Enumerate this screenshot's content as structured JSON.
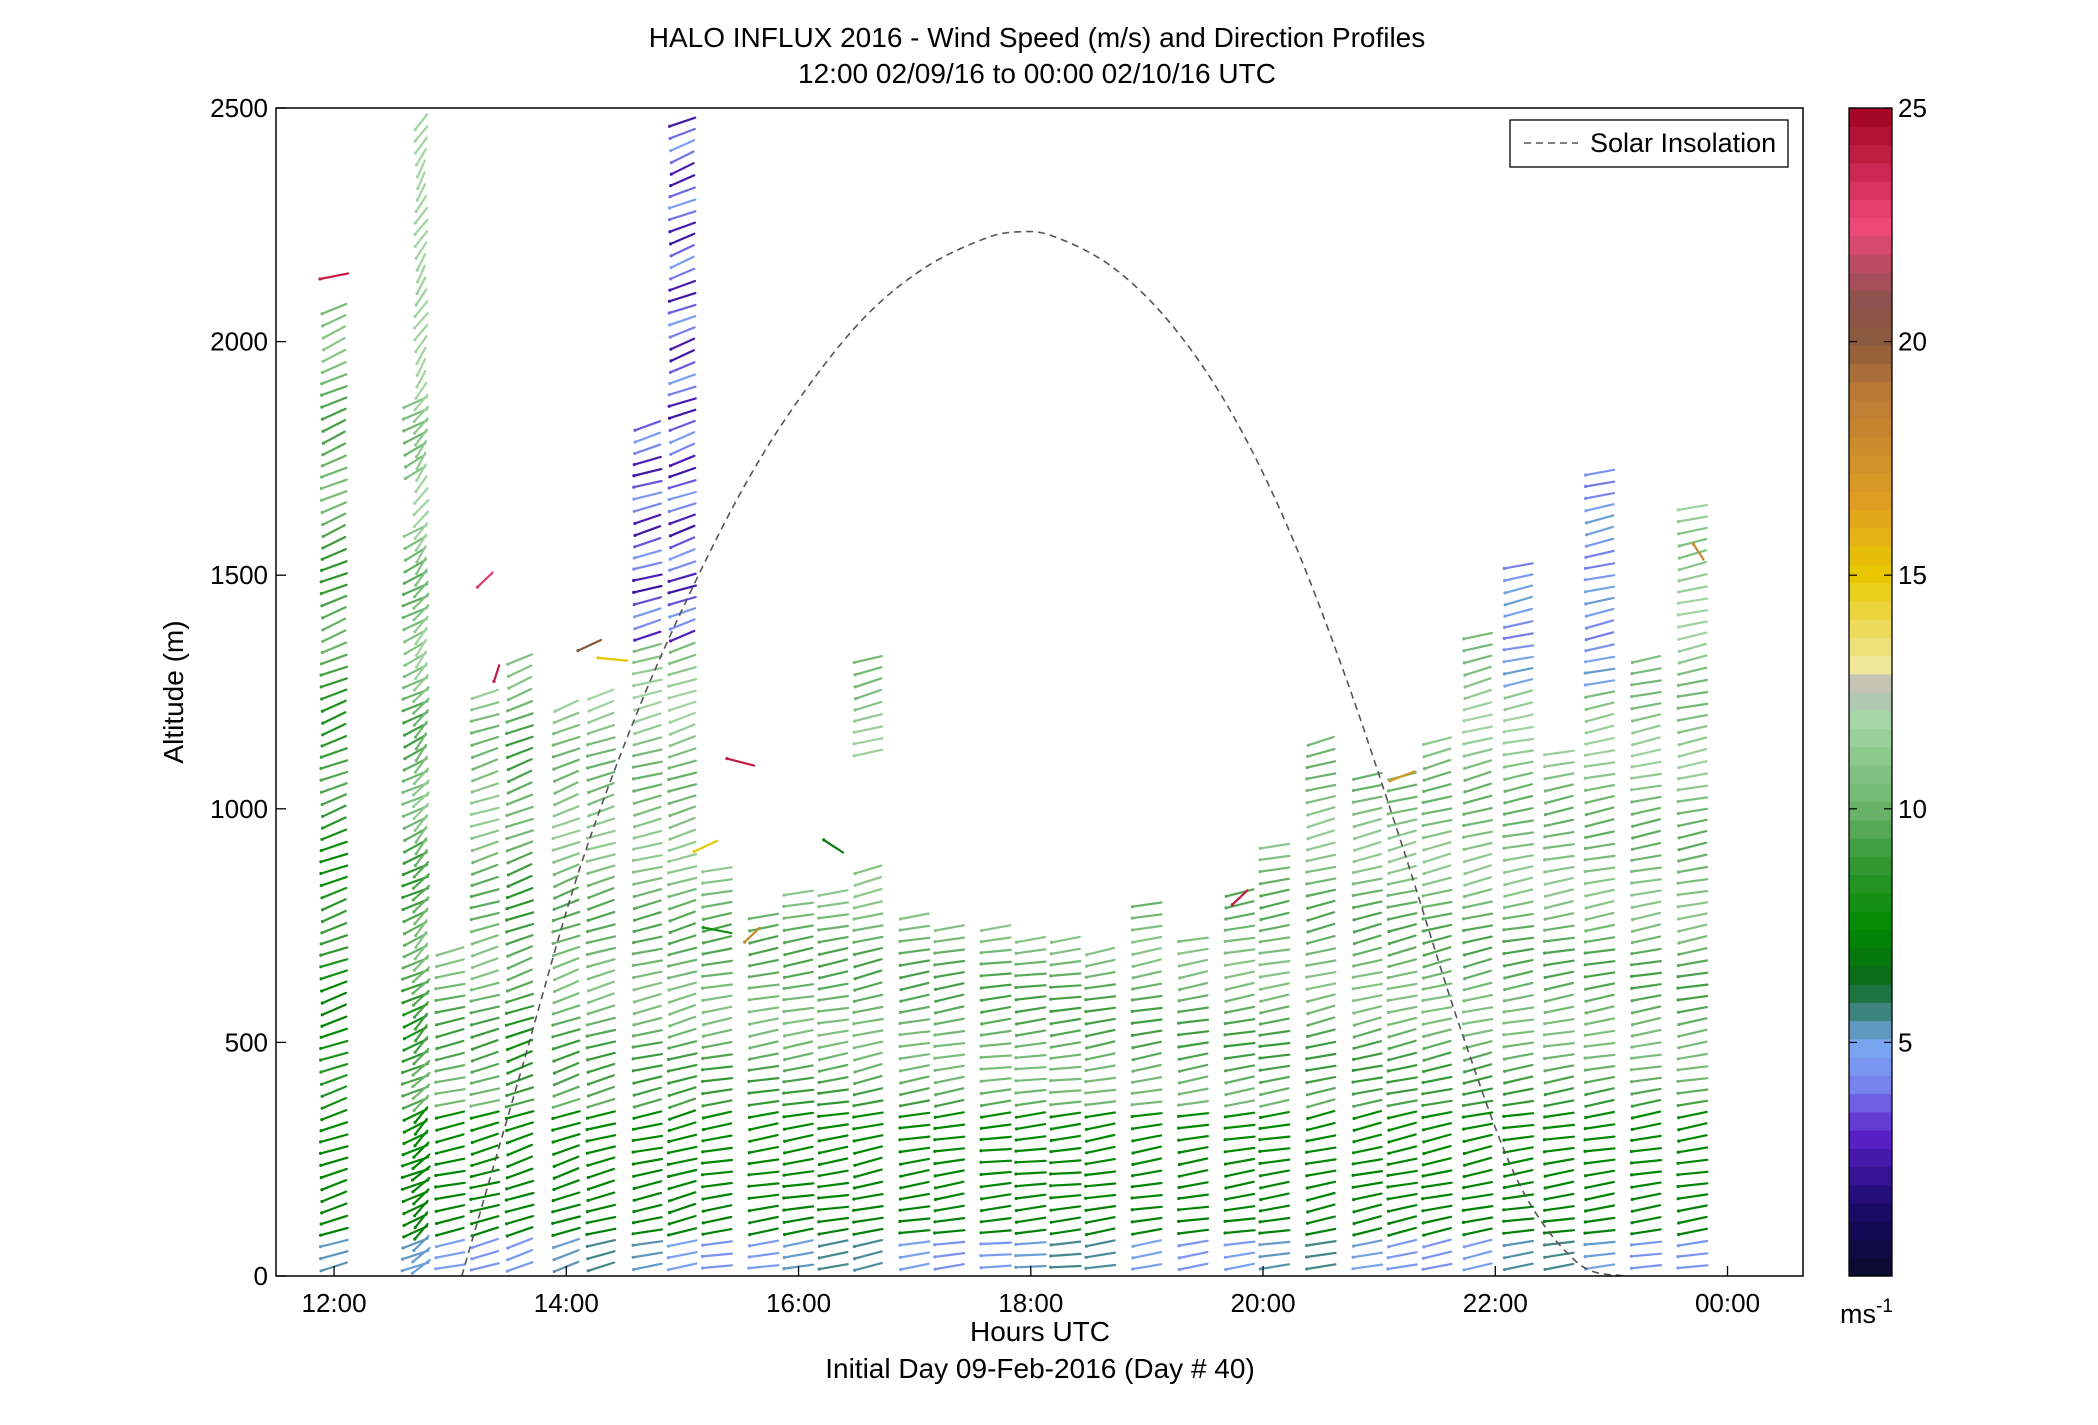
{
  "chart_data": {
    "type": "wind-barb-profile",
    "title": "HALO INFLUX 2016 - Wind Speed (m/s) and Direction Profiles",
    "subtitle": "12:00 02/09/16 to 00:00 02/10/16  UTC",
    "xlabel": "Hours UTC",
    "xlabel2": "Initial Day 09-Feb-2016 (Day # 40)",
    "ylabel": "Altitude (m)",
    "xlim": [
      11.5,
      24.65
    ],
    "ylim": [
      0,
      2500
    ],
    "x_ticks": [
      12,
      14,
      16,
      18,
      20,
      22,
      24
    ],
    "x_tick_labels": [
      "12:00",
      "14:00",
      "16:00",
      "18:00",
      "20:00",
      "22:00",
      "00:00"
    ],
    "y_ticks": [
      0,
      500,
      1000,
      1500,
      2000,
      2500
    ],
    "y_tick_labels": [
      "0",
      "500",
      "1000",
      "1500",
      "2000",
      "2500"
    ],
    "legend": {
      "label": "Solar Insolation",
      "style": "dashed",
      "color": "#555555",
      "position": "top-right"
    },
    "colorbar": {
      "range": [
        0,
        25
      ],
      "ticks": [
        5,
        10,
        15,
        20,
        25
      ],
      "tick_labels": [
        "5",
        "10",
        "15",
        "20",
        "25"
      ],
      "unit": "ms",
      "unit_sup": "-1",
      "stops": [
        {
          "v": 0,
          "c": "#0a0a2a"
        },
        {
          "v": 1.5,
          "c": "#1a0a6a"
        },
        {
          "v": 3,
          "c": "#5a20c8"
        },
        {
          "v": 4.2,
          "c": "#7a8cf0"
        },
        {
          "v": 5,
          "c": "#78a8f0"
        },
        {
          "v": 5.5,
          "c": "#4a8a98"
        },
        {
          "v": 6.3,
          "c": "#0a6a1a"
        },
        {
          "v": 7.5,
          "c": "#008a00"
        },
        {
          "v": 9,
          "c": "#3a9a3a"
        },
        {
          "v": 10,
          "c": "#6ab46a"
        },
        {
          "v": 12,
          "c": "#a8d8a8"
        },
        {
          "v": 12.6,
          "c": "#b8b8b8"
        },
        {
          "v": 13,
          "c": "#f0e8a0"
        },
        {
          "v": 15,
          "c": "#e8c800"
        },
        {
          "v": 16.5,
          "c": "#e0a020"
        },
        {
          "v": 19,
          "c": "#b87838"
        },
        {
          "v": 20,
          "c": "#8a5a3a"
        },
        {
          "v": 21,
          "c": "#905050"
        },
        {
          "v": 22.5,
          "c": "#f04878"
        },
        {
          "v": 25,
          "c": "#a00020"
        }
      ]
    },
    "solar_insolation": {
      "x": [
        13.1,
        13.6,
        14.1,
        14.6,
        15.1,
        15.6,
        16.1,
        16.6,
        17.1,
        17.6,
        17.9,
        18.2,
        18.7,
        19.2,
        19.7,
        20.2,
        20.7,
        21.2,
        21.7,
        22.2,
        22.7,
        23.1
      ],
      "y": [
        0,
        430,
        860,
        1200,
        1480,
        1720,
        1910,
        2060,
        2160,
        2220,
        2235,
        2225,
        2160,
        2040,
        1860,
        1610,
        1290,
        920,
        530,
        200,
        30,
        0
      ]
    },
    "wind_profiles": [
      {
        "t": 12.0,
        "top": 2080,
        "gaps": [],
        "dir": 300,
        "spd": 7
      },
      {
        "t": 12.7,
        "top": 1870,
        "gaps": [
          [
            1700,
            1620
          ]
        ],
        "dir": 305,
        "spd": 8
      },
      {
        "t": 12.75,
        "top": 2490,
        "gaps": [],
        "dir": 330,
        "spd": 9
      },
      {
        "t": 13.0,
        "top": 710,
        "gaps": [],
        "dir": 290,
        "spd": 9
      },
      {
        "t": 13.3,
        "top": 1250,
        "gaps": [],
        "dir": 295,
        "spd": 9
      },
      {
        "t": 13.6,
        "top": 1340,
        "gaps": [],
        "dir": 300,
        "spd": 8
      },
      {
        "t": 14.0,
        "top": 1220,
        "gaps": [],
        "dir": 300,
        "spd": 9
      },
      {
        "t": 14.3,
        "top": 1250,
        "gaps": [],
        "dir": 295,
        "spd": 9
      },
      {
        "t": 14.7,
        "top": 1820,
        "gaps": [],
        "dir": 290,
        "spd": 9
      },
      {
        "t": 15.0,
        "top": 2490,
        "gaps": [],
        "dir": 295,
        "spd": 9
      },
      {
        "t": 15.3,
        "top": 870,
        "gaps": [],
        "dir": 285,
        "spd": 9
      },
      {
        "t": 15.7,
        "top": 780,
        "gaps": [],
        "dir": 285,
        "spd": 9
      },
      {
        "t": 16.0,
        "top": 830,
        "gaps": [],
        "dir": 285,
        "spd": 9
      },
      {
        "t": 16.3,
        "top": 840,
        "gaps": [],
        "dir": 285,
        "spd": 9
      },
      {
        "t": 16.6,
        "top": 1320,
        "gaps": [
          [
            1100,
            880
          ]
        ],
        "dir": 290,
        "spd": 9
      },
      {
        "t": 17.0,
        "top": 790,
        "gaps": [],
        "dir": 285,
        "spd": 9
      },
      {
        "t": 17.3,
        "top": 760,
        "gaps": [],
        "dir": 285,
        "spd": 9
      },
      {
        "t": 17.7,
        "top": 760,
        "gaps": [],
        "dir": 280,
        "spd": 9
      },
      {
        "t": 18.0,
        "top": 740,
        "gaps": [],
        "dir": 280,
        "spd": 9
      },
      {
        "t": 18.3,
        "top": 740,
        "gaps": [],
        "dir": 280,
        "spd": 9
      },
      {
        "t": 18.6,
        "top": 700,
        "gaps": [],
        "dir": 285,
        "spd": 9
      },
      {
        "t": 19.0,
        "top": 810,
        "gaps": [],
        "dir": 285,
        "spd": 9
      },
      {
        "t": 19.4,
        "top": 740,
        "gaps": [],
        "dir": 285,
        "spd": 9
      },
      {
        "t": 19.8,
        "top": 820,
        "gaps": [],
        "dir": 285,
        "spd": 9
      },
      {
        "t": 20.1,
        "top": 940,
        "gaps": [],
        "dir": 285,
        "spd": 9
      },
      {
        "t": 20.5,
        "top": 1160,
        "gaps": [],
        "dir": 290,
        "spd": 9
      },
      {
        "t": 20.9,
        "top": 1080,
        "gaps": [],
        "dir": 290,
        "spd": 9
      },
      {
        "t": 21.2,
        "top": 1070,
        "gaps": [],
        "dir": 290,
        "spd": 9
      },
      {
        "t": 21.5,
        "top": 1160,
        "gaps": [],
        "dir": 290,
        "spd": 9
      },
      {
        "t": 21.85,
        "top": 1380,
        "gaps": [],
        "dir": 290,
        "spd": 9
      },
      {
        "t": 22.2,
        "top": 1540,
        "gaps": [],
        "dir": 285,
        "spd": 9
      },
      {
        "t": 22.55,
        "top": 1120,
        "gaps": [],
        "dir": 285,
        "spd": 9
      },
      {
        "t": 22.9,
        "top": 1740,
        "gaps": [],
        "dir": 285,
        "spd": 9
      },
      {
        "t": 23.3,
        "top": 1330,
        "gaps": [],
        "dir": 285,
        "spd": 9
      },
      {
        "t": 23.7,
        "top": 1660,
        "gaps": [],
        "dir": 285,
        "spd": 9
      }
    ],
    "isolated_barbs": [
      {
        "t": 12.0,
        "z": 2140,
        "dir": 290,
        "spd": 24
      },
      {
        "t": 13.3,
        "z": 1490,
        "dir": 330,
        "spd": 23
      },
      {
        "t": 13.4,
        "z": 1290,
        "dir": 350,
        "spd": 24
      },
      {
        "t": 14.2,
        "z": 1350,
        "dir": 310,
        "spd": 20
      },
      {
        "t": 14.4,
        "z": 1320,
        "dir": 260,
        "spd": 15
      },
      {
        "t": 15.5,
        "z": 1100,
        "dir": 245,
        "spd": 24
      },
      {
        "t": 15.2,
        "z": 920,
        "dir": 310,
        "spd": 15
      },
      {
        "t": 16.3,
        "z": 920,
        "dir": 220,
        "spd": 7
      },
      {
        "t": 15.6,
        "z": 730,
        "dir": 330,
        "spd": 18
      },
      {
        "t": 15.3,
        "z": 740,
        "dir": 250,
        "spd": 8
      },
      {
        "t": 19.8,
        "z": 810,
        "dir": 330,
        "spd": 24
      },
      {
        "t": 21.2,
        "z": 1070,
        "dir": 305,
        "spd": 17
      },
      {
        "t": 23.75,
        "z": 1550,
        "dir": 200,
        "spd": 18
      }
    ]
  }
}
